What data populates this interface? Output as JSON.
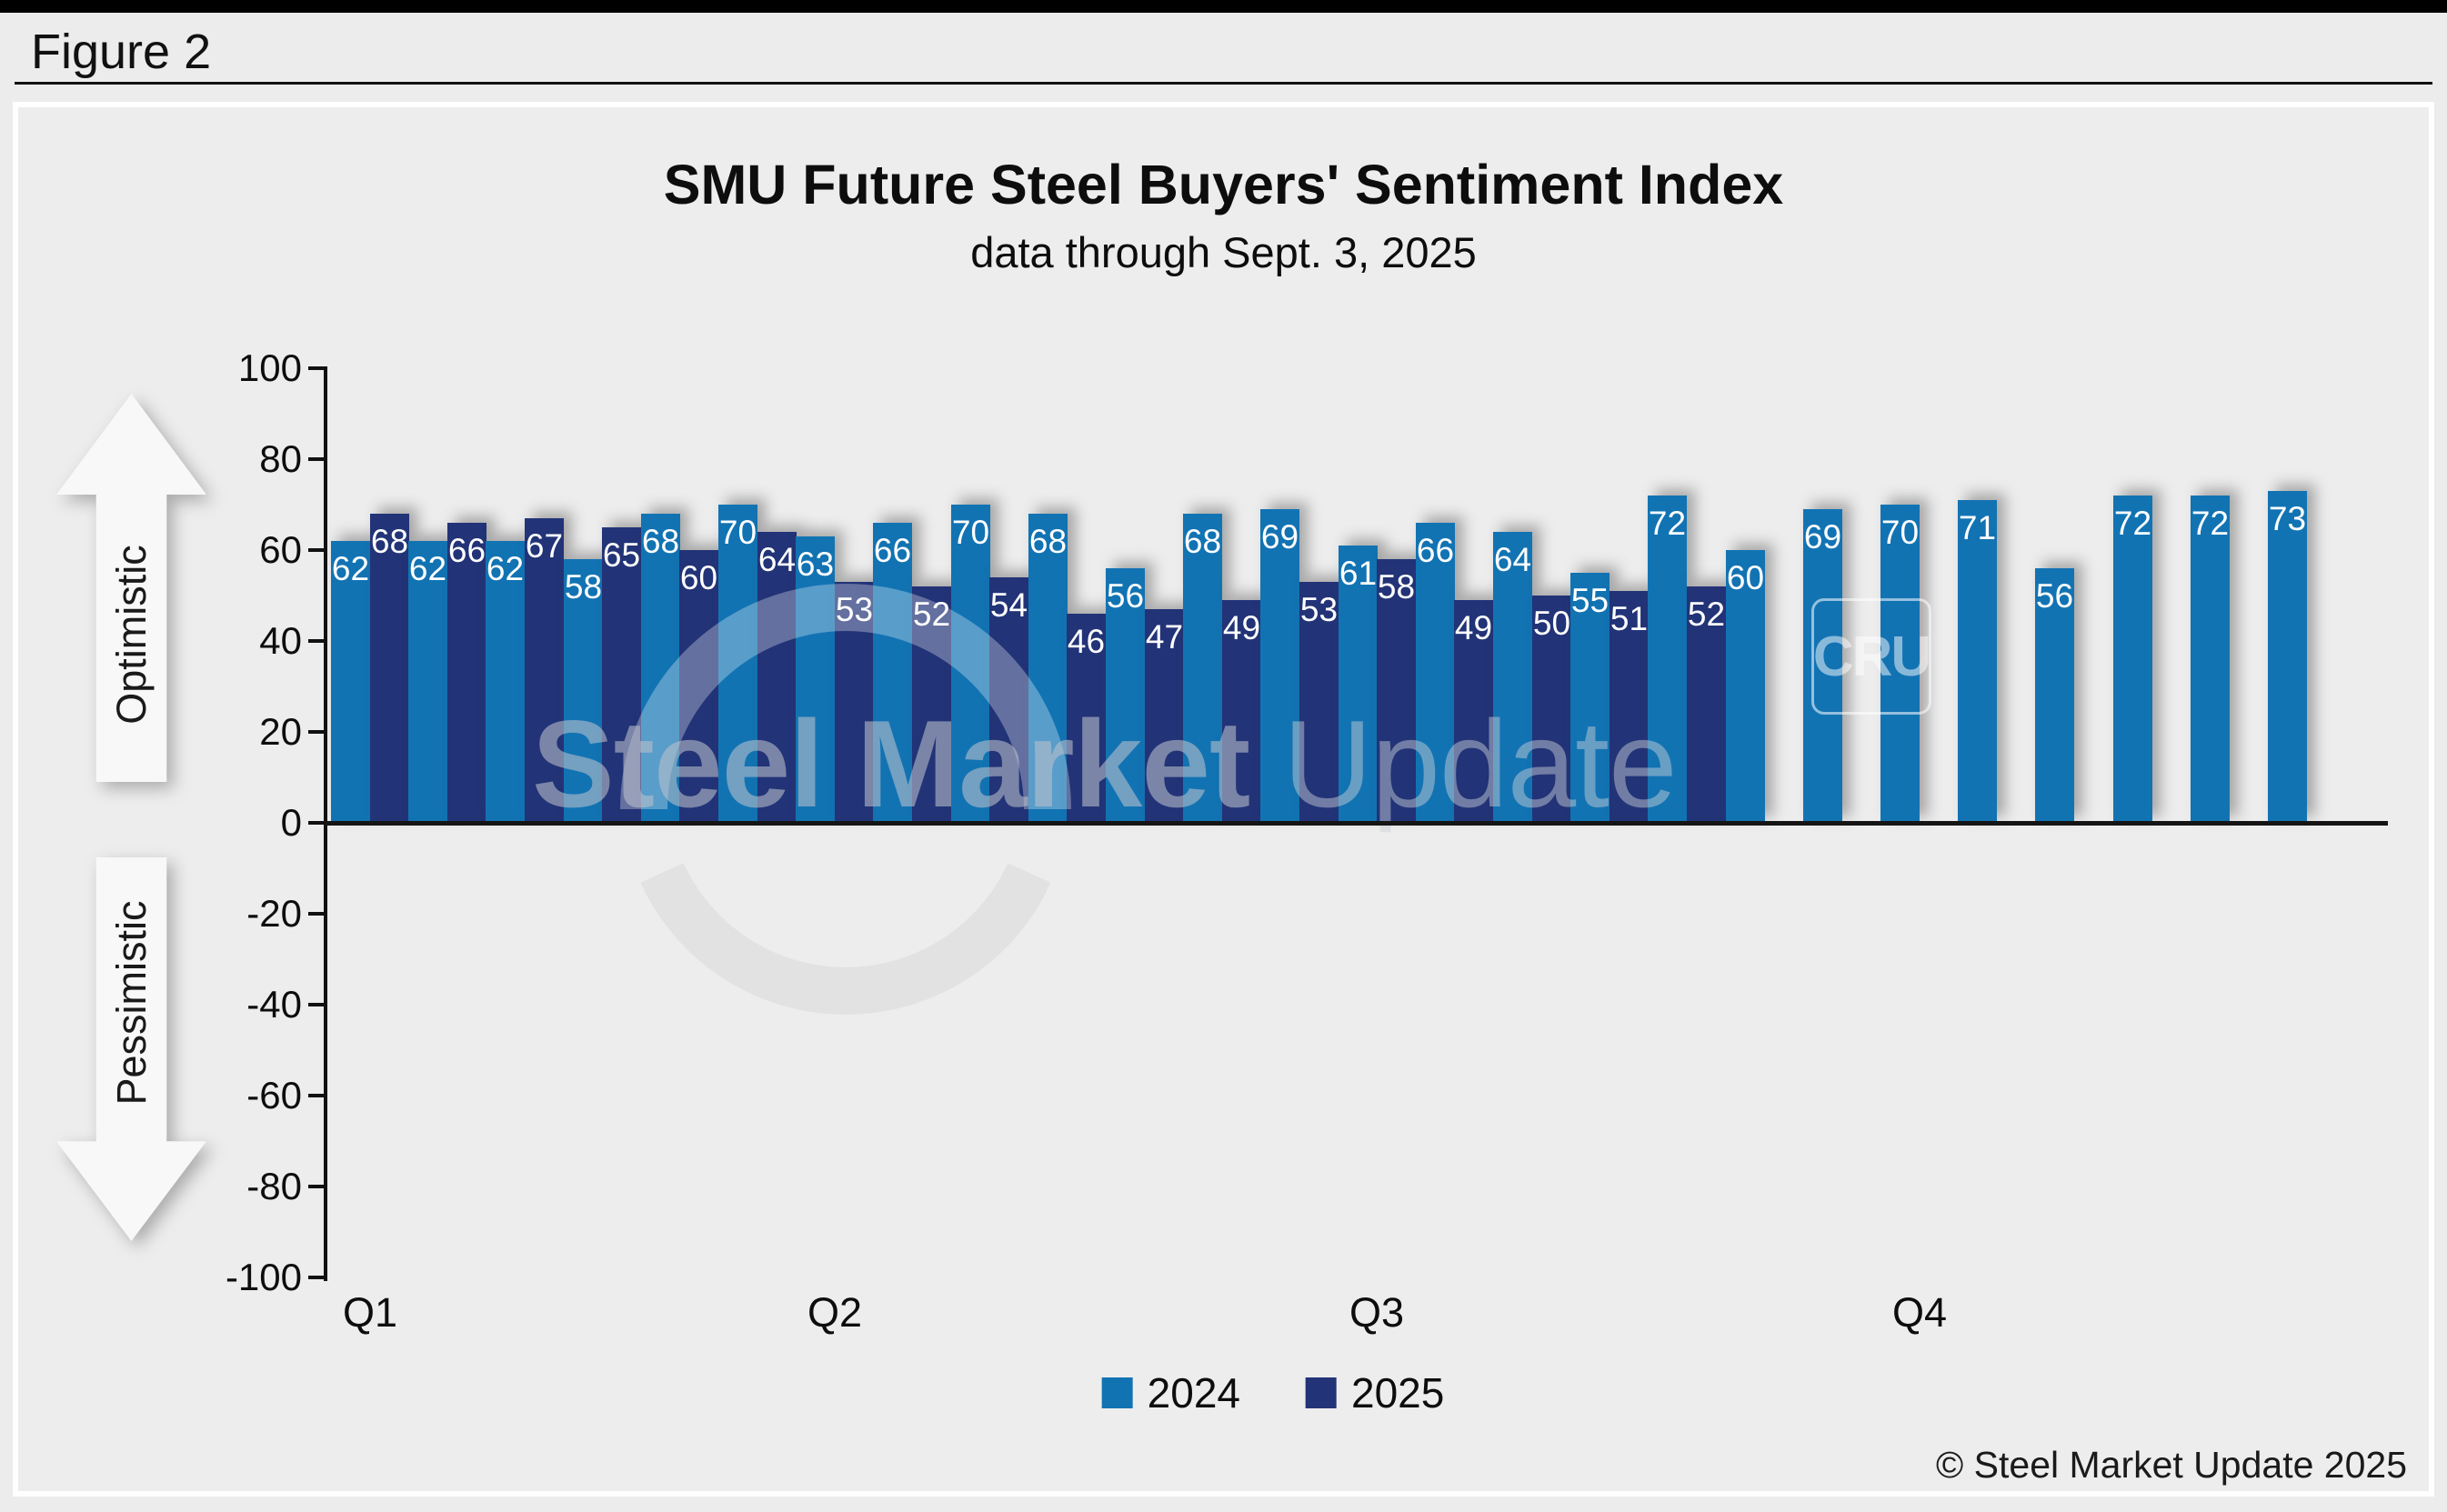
{
  "figure_label": "Figure 2",
  "footer": {
    "copyright": "© Steel Market Update 2025"
  },
  "chart_data": {
    "type": "bar",
    "title": "SMU Future Steel Buyers' Sentiment Index",
    "subtitle": "data through Sept. 3, 2025",
    "ylim": [
      -100,
      100
    ],
    "y_ticks": [
      100,
      80,
      60,
      40,
      20,
      0,
      -20,
      -40,
      -60,
      -80,
      -100
    ],
    "x_quarter_labels": [
      "Q1",
      "Q2",
      "Q3",
      "Q4"
    ],
    "axis_annotations": {
      "positive": "Optimistic",
      "negative": "Pessimistic"
    },
    "legend_position": "bottom",
    "grid": false,
    "series": [
      {
        "name": "2024",
        "color": "#1273b3",
        "values": [
          62,
          62,
          62,
          58,
          68,
          70,
          63,
          66,
          70,
          68,
          56,
          68,
          69,
          61,
          66,
          64,
          55,
          72,
          60,
          69,
          70,
          71,
          56,
          72,
          72,
          73
        ]
      },
      {
        "name": "2025",
        "color": "#223377",
        "values": [
          68,
          66,
          67,
          65,
          60,
          64,
          53,
          52,
          54,
          46,
          47,
          49,
          53,
          58,
          49,
          50,
          51,
          52
        ]
      }
    ],
    "watermark": {
      "bold": "Steel Market",
      "light": " Update",
      "cru": "CRU"
    }
  }
}
